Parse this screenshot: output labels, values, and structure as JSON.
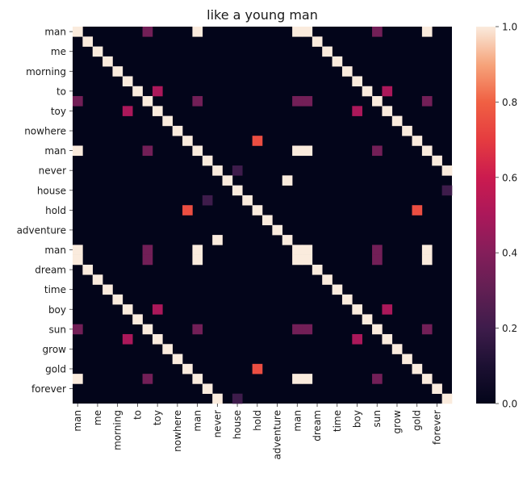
{
  "chart_data": {
    "type": "heatmap",
    "title": "like a young man",
    "row_labels": [
      "man",
      "",
      "me",
      "",
      "morning",
      "",
      "to",
      "",
      "toy",
      "",
      "nowhere",
      "",
      "man",
      "",
      "never",
      "",
      "house",
      "",
      "hold",
      "",
      "adventure",
      "",
      "man",
      "",
      "dream",
      "",
      "time",
      "",
      "boy",
      "",
      "sun",
      "",
      "grow",
      "",
      "gold",
      "",
      "forever",
      ""
    ],
    "col_labels": [
      "man",
      "",
      "me",
      "",
      "morning",
      "",
      "to",
      "",
      "toy",
      "",
      "nowhere",
      "",
      "man",
      "",
      "never",
      "",
      "house",
      "",
      "hold",
      "",
      "adventure",
      "",
      "man",
      "",
      "dream",
      "",
      "time",
      "",
      "boy",
      "",
      "sun",
      "",
      "grow",
      "",
      "gold",
      "",
      "forever",
      ""
    ],
    "colorbar": {
      "min": 0.0,
      "max": 1.0,
      "ticks": [
        "0.0",
        "0.2",
        "0.4",
        "0.6",
        "0.8",
        "1.0"
      ]
    },
    "colormap": "rocket",
    "cells": [
      [
        0,
        0,
        1
      ],
      [
        0,
        7,
        0.35
      ],
      [
        0,
        12,
        1
      ],
      [
        0,
        22,
        1
      ],
      [
        0,
        23,
        1
      ],
      [
        0,
        30,
        0.35
      ],
      [
        0,
        35,
        1
      ],
      [
        1,
        1,
        1
      ],
      [
        1,
        24,
        1
      ],
      [
        2,
        2,
        1
      ],
      [
        2,
        25,
        1
      ],
      [
        3,
        3,
        1
      ],
      [
        3,
        26,
        1
      ],
      [
        4,
        4,
        1
      ],
      [
        4,
        27,
        1
      ],
      [
        5,
        5,
        1
      ],
      [
        5,
        28,
        1
      ],
      [
        6,
        6,
        1
      ],
      [
        6,
        8,
        0.5
      ],
      [
        6,
        29,
        1
      ],
      [
        6,
        31,
        0.5
      ],
      [
        7,
        0,
        0.35
      ],
      [
        7,
        7,
        1
      ],
      [
        7,
        12,
        0.35
      ],
      [
        7,
        22,
        0.35
      ],
      [
        7,
        23,
        0.35
      ],
      [
        7,
        30,
        1
      ],
      [
        7,
        35,
        0.35
      ],
      [
        8,
        5,
        0.5
      ],
      [
        8,
        8,
        1
      ],
      [
        8,
        28,
        0.5
      ],
      [
        8,
        31,
        1
      ],
      [
        9,
        9,
        1
      ],
      [
        9,
        32,
        1
      ],
      [
        10,
        10,
        1
      ],
      [
        10,
        33,
        1
      ],
      [
        11,
        11,
        1
      ],
      [
        11,
        18,
        0.75
      ],
      [
        11,
        34,
        1
      ],
      [
        12,
        0,
        1
      ],
      [
        12,
        7,
        0.35
      ],
      [
        12,
        12,
        1
      ],
      [
        12,
        22,
        1
      ],
      [
        12,
        23,
        1
      ],
      [
        12,
        30,
        0.35
      ],
      [
        12,
        35,
        1
      ],
      [
        13,
        13,
        1
      ],
      [
        13,
        36,
        1
      ],
      [
        14,
        14,
        1
      ],
      [
        14,
        16,
        0.2
      ],
      [
        14,
        37,
        1
      ],
      [
        15,
        15,
        1
      ],
      [
        15,
        21,
        1
      ],
      [
        16,
        16,
        1
      ],
      [
        16,
        37,
        0.2
      ],
      [
        17,
        13,
        0.2
      ],
      [
        17,
        17,
        1
      ],
      [
        18,
        11,
        0.75
      ],
      [
        18,
        18,
        1
      ],
      [
        18,
        34,
        0.75
      ],
      [
        19,
        19,
        1
      ],
      [
        20,
        20,
        1
      ],
      [
        21,
        14,
        1
      ],
      [
        21,
        21,
        1
      ],
      [
        22,
        0,
        1
      ],
      [
        22,
        7,
        0.35
      ],
      [
        22,
        12,
        1
      ],
      [
        22,
        22,
        1
      ],
      [
        22,
        23,
        1
      ],
      [
        22,
        30,
        0.35
      ],
      [
        22,
        35,
        1
      ],
      [
        23,
        0,
        1
      ],
      [
        23,
        7,
        0.35
      ],
      [
        23,
        12,
        1
      ],
      [
        23,
        22,
        1
      ],
      [
        23,
        23,
        1
      ],
      [
        23,
        30,
        0.35
      ],
      [
        23,
        35,
        1
      ],
      [
        24,
        1,
        1
      ],
      [
        24,
        24,
        1
      ],
      [
        25,
        2,
        1
      ],
      [
        25,
        25,
        1
      ],
      [
        26,
        3,
        1
      ],
      [
        26,
        26,
        1
      ],
      [
        27,
        4,
        1
      ],
      [
        27,
        27,
        1
      ],
      [
        28,
        5,
        1
      ],
      [
        28,
        8,
        0.5
      ],
      [
        28,
        28,
        1
      ],
      [
        28,
        31,
        0.5
      ],
      [
        29,
        6,
        1
      ],
      [
        29,
        29,
        1
      ],
      [
        30,
        0,
        0.35
      ],
      [
        30,
        7,
        1
      ],
      [
        30,
        12,
        0.35
      ],
      [
        30,
        22,
        0.35
      ],
      [
        30,
        23,
        0.35
      ],
      [
        30,
        30,
        1
      ],
      [
        30,
        35,
        0.35
      ],
      [
        31,
        5,
        0.5
      ],
      [
        31,
        8,
        1
      ],
      [
        31,
        28,
        0.5
      ],
      [
        31,
        31,
        1
      ],
      [
        32,
        9,
        1
      ],
      [
        32,
        32,
        1
      ],
      [
        33,
        10,
        1
      ],
      [
        33,
        33,
        1
      ],
      [
        34,
        11,
        1
      ],
      [
        34,
        18,
        0.75
      ],
      [
        34,
        34,
        1
      ],
      [
        35,
        0,
        1
      ],
      [
        35,
        7,
        0.35
      ],
      [
        35,
        12,
        1
      ],
      [
        35,
        22,
        1
      ],
      [
        35,
        23,
        1
      ],
      [
        35,
        30,
        0.35
      ],
      [
        35,
        35,
        1
      ],
      [
        36,
        13,
        1
      ],
      [
        36,
        36,
        1
      ],
      [
        37,
        14,
        1
      ],
      [
        37,
        16,
        0.2
      ],
      [
        37,
        37,
        1
      ]
    ]
  }
}
